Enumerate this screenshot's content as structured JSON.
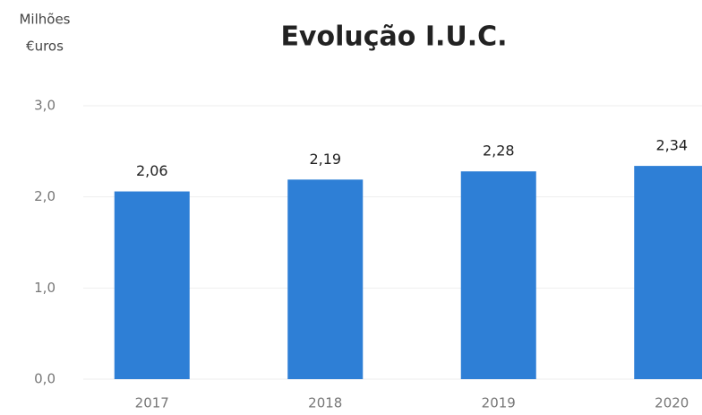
{
  "chart_data": {
    "type": "bar",
    "title": "Evolução I.U.C.",
    "y_label": [
      "Milhões",
      "€uros"
    ],
    "categories": [
      "2017",
      "2018",
      "2019",
      "2020"
    ],
    "values": [
      2.06,
      2.19,
      2.28,
      2.34
    ],
    "value_labels": [
      "2,06",
      "2,19",
      "2,28",
      "2,34"
    ],
    "color": "#2e7fd6",
    "ylim": [
      0,
      3
    ],
    "yticks": [
      {
        "value": 0,
        "label": "0,0"
      },
      {
        "value": 1,
        "label": "1,0"
      },
      {
        "value": 2,
        "label": "2,0"
      },
      {
        "value": 3,
        "label": "3,0"
      }
    ],
    "grid": true
  }
}
